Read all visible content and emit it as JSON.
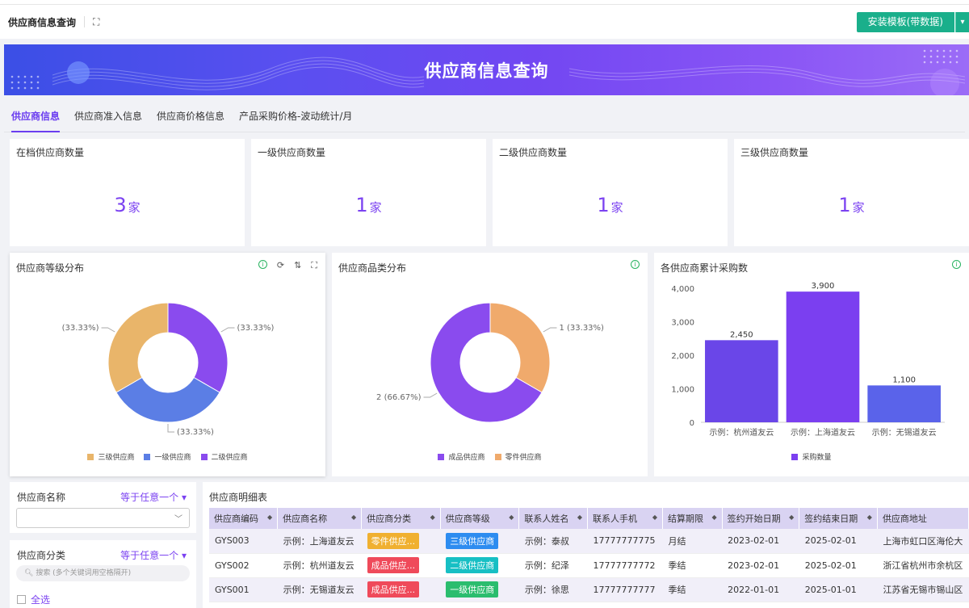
{
  "header": {
    "title": "供应商信息查询",
    "install_label": "安装模板(带数据)"
  },
  "banner": {
    "title": "供应商信息查询"
  },
  "tabs": [
    {
      "label": "供应商信息",
      "active": true
    },
    {
      "label": "供应商准入信息",
      "active": false
    },
    {
      "label": "供应商价格信息",
      "active": false
    },
    {
      "label": "产品采购价格-波动统计/月",
      "active": false
    }
  ],
  "kpis": [
    {
      "label": "在档供应商数量",
      "value": "3",
      "unit": "家"
    },
    {
      "label": "一级供应商数量",
      "value": "1",
      "unit": "家"
    },
    {
      "label": "二级供应商数量",
      "value": "1",
      "unit": "家"
    },
    {
      "label": "三级供应商数量",
      "value": "1",
      "unit": "家"
    }
  ],
  "panels": {
    "grade": {
      "title": "供应商等级分布"
    },
    "category": {
      "title": "供应商品类分布"
    },
    "purchase": {
      "title": "各供应商累计采购数"
    }
  },
  "chart_data": [
    {
      "type": "pie",
      "title": "供应商等级分布",
      "categories": [
        "三级供应商",
        "一级供应商",
        "二级供应商"
      ],
      "values": [
        1,
        1,
        1
      ],
      "colors": [
        "#e9b56a",
        "#5b7ee5",
        "#8a4bee"
      ],
      "data_labels": [
        "(33.33%)",
        "(33.33%)",
        "(33.33%)"
      ],
      "legend": "bottom"
    },
    {
      "type": "pie",
      "title": "供应商品类分布",
      "categories": [
        "成品供应商",
        "零件供应商"
      ],
      "values": [
        2,
        1
      ],
      "colors": [
        "#8a4bee",
        "#f0aa6c"
      ],
      "data_labels": [
        "2 (66.67%)",
        "1 (33.33%)"
      ],
      "legend": "bottom"
    },
    {
      "type": "bar",
      "title": "各供应商累计采购数",
      "categories": [
        "示例：杭州道友云",
        "示例：上海道友云",
        "示例：无锡道友云"
      ],
      "series": [
        {
          "name": "采购数量",
          "values": [
            2450,
            3900,
            1100
          ]
        }
      ],
      "value_labels": [
        "2,450",
        "3,900",
        "1,100"
      ],
      "colors": [
        "#6a46e8",
        "#7b3ff0",
        "#5a63ea"
      ],
      "yticks": [
        "0",
        "1,000",
        "2,000",
        "3,000",
        "4,000"
      ],
      "ylim": [
        0,
        4000
      ],
      "legend": "bottom"
    }
  ],
  "filters": {
    "name": {
      "label": "供应商名称",
      "mode": "等于任意一个"
    },
    "category": {
      "label": "供应商分类",
      "mode": "等于任意一个",
      "search_placeholder": "搜索 (多个关键词用空格隔开)",
      "select_all": "全选"
    }
  },
  "table": {
    "title": "供应商明细表",
    "columns": [
      "供应商编码",
      "供应商名称",
      "供应商分类",
      "供应商等级",
      "联系人姓名",
      "联系人手机",
      "结算期限",
      "签约开始日期",
      "签约结束日期",
      "供应商地址"
    ],
    "rows": [
      {
        "code": "GYS003",
        "name": "示例：上海道友云",
        "category": "零件供应...",
        "category_color": "#f0b030",
        "grade": "三级供应商",
        "grade_color": "#2d8cf0",
        "contact": "示例：泰叔",
        "phone": "17777777775",
        "term": "月结",
        "start": "2023-02-01",
        "end": "2025-02-01",
        "address": "上海市虹口区海伦大"
      },
      {
        "code": "GYS002",
        "name": "示例：杭州道友云",
        "category": "成品供应...",
        "category_color": "#ef4a5a",
        "grade": "二级供应商",
        "grade_color": "#17bfc4",
        "contact": "示例：纪泽",
        "phone": "17777777772",
        "term": "季结",
        "start": "2023-02-01",
        "end": "2025-02-01",
        "address": "浙江省杭州市余杭区"
      },
      {
        "code": "GYS001",
        "name": "示例：无锡道友云",
        "category": "成品供应...",
        "category_color": "#ef4a5a",
        "grade": "一级供应商",
        "grade_color": "#2bbd6e",
        "contact": "示例：徐思",
        "phone": "17777777777",
        "term": "季结",
        "start": "2022-01-01",
        "end": "2025-01-01",
        "address": "江苏省无锡市锡山区"
      }
    ]
  }
}
